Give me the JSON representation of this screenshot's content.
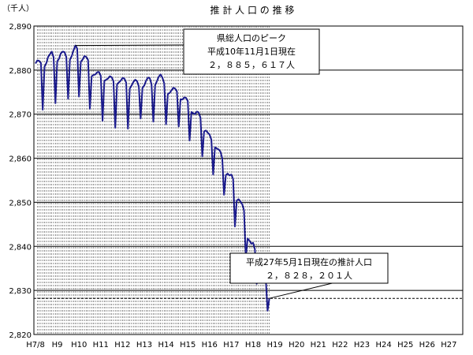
{
  "chart_data": {
    "type": "line",
    "title": "推 計 人 口 の 推 移",
    "unit_label": "（千人）",
    "ylim": [
      2820,
      2890
    ],
    "y_ticks": [
      2820,
      2830,
      2840,
      2850,
      2860,
      2870,
      2880,
      2890
    ],
    "y_tick_labels": [
      "2,820",
      "2,830",
      "2,840",
      "2,850",
      "2,860",
      "2,870",
      "2,880",
      "2,890"
    ],
    "x_ticks": [
      "H7/8",
      "H9",
      "H10",
      "H11",
      "H12",
      "H13",
      "H14",
      "H15",
      "H16",
      "H17",
      "H18",
      "H19",
      "H20",
      "H21",
      "H22",
      "H23",
      "H24",
      "H25",
      "H26",
      "H27"
    ],
    "grid": "horizontal-solid, vertical-dashed",
    "reference_line": 2828.201,
    "line_color": "#1a1a8c",
    "series": [
      {
        "values": [
          2881.5,
          2882.2,
          2882.1,
          2881.6,
          2871.0,
          2880.8,
          2881.6,
          2883.0,
          2883.6,
          2884.2,
          2882.9,
          2872.5,
          2882.0,
          2882.6,
          2883.8,
          2884.2,
          2884.1,
          2883.0,
          2873.5,
          2882.4,
          2883.2,
          2884.5,
          2885.6,
          2884.9,
          2874.0,
          2881.9,
          2882.4,
          2883.2,
          2883.0,
          2882.3,
          2871.2,
          2878.6,
          2878.9,
          2879.0,
          2879.5,
          2879.6,
          2878.7,
          2868.5,
          2877.6,
          2877.8,
          2878.1,
          2878.6,
          2878.4,
          2877.5,
          2866.9,
          2876.8,
          2877.2,
          2877.6,
          2878.2,
          2878.1,
          2877.2,
          2866.7,
          2875.8,
          2876.5,
          2877.3,
          2877.8,
          2877.5,
          2876.3,
          2869.0,
          2876.0,
          2876.5,
          2877.6,
          2878.3,
          2878.2,
          2876.8,
          2868.3,
          2876.6,
          2877.5,
          2878.5,
          2879.0,
          2878.3,
          2877.0,
          2867.7,
          2874.6,
          2874.8,
          2875.4,
          2876.0,
          2875.8,
          2875.2,
          2867.2,
          2873.4,
          2873.3,
          2873.8,
          2873.7,
          2873.0,
          2864.0,
          2870.5,
          2870.2,
          2870.0,
          2870.6,
          2870.4,
          2869.2,
          2860.4,
          2866.1,
          2866.3,
          2865.8,
          2865.4,
          2864.2,
          2856.3,
          2862.5,
          2862.2,
          2862.0,
          2861.5,
          2860.0,
          2851.7,
          2856.2,
          2856.5,
          2856.1,
          2856.3,
          2855.3,
          2844.5,
          2850.4,
          2850.7,
          2850.2,
          2849.6,
          2848.2,
          2837.5,
          2841.8,
          2841.3,
          2840.6,
          2840.8,
          2839.4,
          2831.5,
          2834.9,
          2834.4,
          2833.8,
          2833.7,
          2832.8,
          2825.4,
          2828.2
        ]
      }
    ],
    "annotations": [
      {
        "lines": [
          "県総人口のピーク",
          "平成10年11月1日現在",
          "２，８８５，６１７人"
        ],
        "value": 2885.617
      },
      {
        "lines": [
          "平成27年5月1日現在の推計人口",
          "２，８２８，２０１人"
        ],
        "value": 2828.201
      }
    ]
  }
}
